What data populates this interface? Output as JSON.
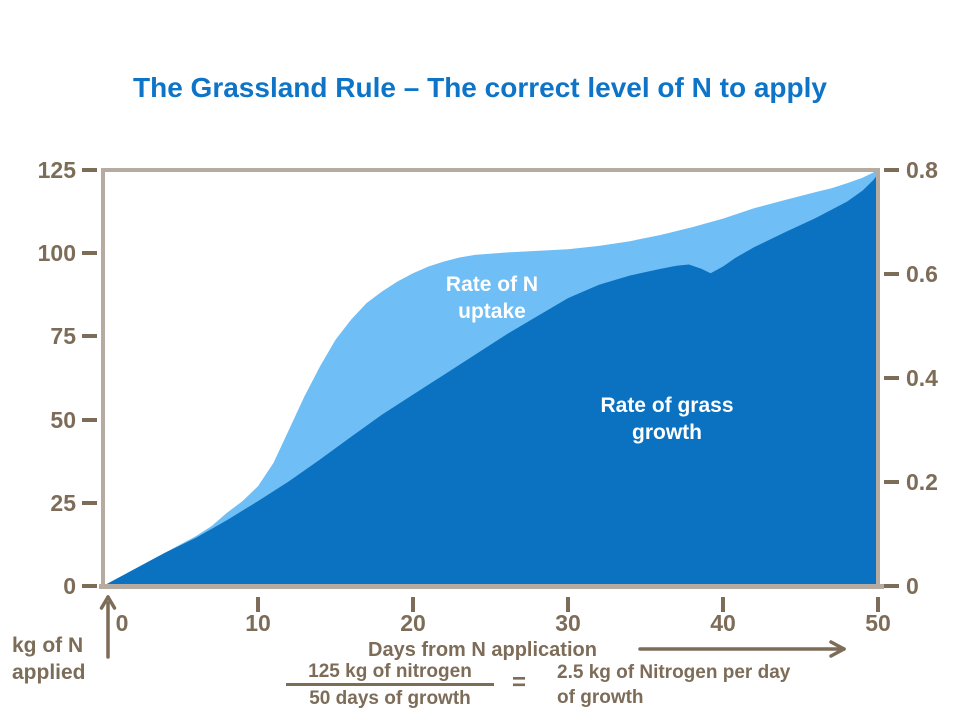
{
  "title": "The Grassland Rule – The correct level of N to apply",
  "colors": {
    "title_blue": "#0d74c8",
    "uptake_area_blue": "#6fbef5",
    "growth_area_blue": "#0b72c2",
    "axis_text_brown": "#7d6c58",
    "frame_gray": "#b5aba1",
    "series_label_white": "#ffffff"
  },
  "left_axis": {
    "title_line1": "kg of N",
    "title_line2": "applied",
    "labels": [
      "125",
      "100",
      "75",
      "50",
      "25",
      "0"
    ],
    "values": [
      125,
      100,
      75,
      50,
      25,
      0
    ]
  },
  "right_axis": {
    "labels": [
      "0.8",
      "0.6",
      "0.4",
      "0.2",
      "0"
    ],
    "values": [
      0.8,
      0.6,
      0.4,
      0.2,
      0
    ]
  },
  "x_axis": {
    "title": "Days from N application",
    "labels": [
      "0",
      "10",
      "20",
      "30",
      "40",
      "50"
    ],
    "values": [
      0,
      10,
      20,
      30,
      40,
      50
    ]
  },
  "series_labels": {
    "uptake_line1": "Rate of N",
    "uptake_line2": "uptake",
    "growth_line1": "Rate of grass",
    "growth_line2": "growth"
  },
  "formula": {
    "numerator": "125 kg of nitrogen",
    "denominator": "50 days of growth",
    "equals": "=",
    "result_line1": "2.5 kg of Nitrogen per day",
    "result_line2": "of growth"
  },
  "chart_data": {
    "type": "area",
    "title": "The Grassland Rule – The correct level of N to apply",
    "xlabel": "Days from N application",
    "ylabel_left": "kg of N applied",
    "xlim": [
      0,
      50
    ],
    "ylim_left": [
      0,
      125
    ],
    "ylim_right": [
      0,
      0.8
    ],
    "x_ticks": [
      0,
      10,
      20,
      30,
      40,
      50
    ],
    "y_ticks_left": [
      0,
      25,
      50,
      75,
      100,
      125
    ],
    "y_ticks_right": [
      0,
      0.2,
      0.4,
      0.6,
      0.8
    ],
    "grid": false,
    "legend": "in-plot text labels",
    "series": [
      {
        "name": "Rate of N uptake",
        "color": "#6fbef5",
        "points": [
          [
            0,
            0
          ],
          [
            1,
            2.5
          ],
          [
            2,
            5
          ],
          [
            3,
            7.5
          ],
          [
            4,
            10
          ],
          [
            5,
            12.5
          ],
          [
            6,
            15
          ],
          [
            7,
            18
          ],
          [
            8,
            22
          ],
          [
            9,
            25.5
          ],
          [
            10,
            30
          ],
          [
            11,
            37
          ],
          [
            12,
            47
          ],
          [
            13,
            57
          ],
          [
            14,
            66
          ],
          [
            15,
            74
          ],
          [
            16,
            80
          ],
          [
            17,
            85
          ],
          [
            18,
            88.5
          ],
          [
            19,
            91.5
          ],
          [
            20,
            94
          ],
          [
            21,
            96
          ],
          [
            22,
            97.5
          ],
          [
            23,
            98.7
          ],
          [
            24,
            99.5
          ],
          [
            26,
            100.2
          ],
          [
            28,
            100.7
          ],
          [
            30,
            101.2
          ],
          [
            32,
            102.2
          ],
          [
            34,
            103.6
          ],
          [
            36,
            105.5
          ],
          [
            38,
            107.8
          ],
          [
            40,
            110.4
          ],
          [
            42,
            113.5
          ],
          [
            44,
            116
          ],
          [
            46,
            118.4
          ],
          [
            47,
            119.5
          ],
          [
            48,
            121
          ],
          [
            49,
            122.7
          ],
          [
            49.6,
            124
          ],
          [
            50,
            125
          ]
        ]
      },
      {
        "name": "Rate of grass growth",
        "color": "#0b72c2",
        "points": [
          [
            0,
            0
          ],
          [
            2,
            5
          ],
          [
            4,
            10
          ],
          [
            6,
            14.5
          ],
          [
            8,
            19.8
          ],
          [
            10,
            25.5
          ],
          [
            12,
            31.5
          ],
          [
            14,
            38
          ],
          [
            16,
            44.8
          ],
          [
            18,
            51.5
          ],
          [
            20,
            57.5
          ],
          [
            22,
            63.5
          ],
          [
            24,
            69.5
          ],
          [
            26,
            75.5
          ],
          [
            28,
            81
          ],
          [
            30,
            86.5
          ],
          [
            32,
            90.5
          ],
          [
            34,
            93.3
          ],
          [
            36,
            95.3
          ],
          [
            37,
            96.2
          ],
          [
            37.8,
            96.6
          ],
          [
            38.6,
            95.3
          ],
          [
            39.2,
            94
          ],
          [
            40,
            96
          ],
          [
            40.8,
            98.6
          ],
          [
            42,
            101.8
          ],
          [
            44,
            106.3
          ],
          [
            46,
            110.6
          ],
          [
            48,
            115.5
          ],
          [
            49,
            118.8
          ],
          [
            49.7,
            122
          ],
          [
            50,
            123.8
          ]
        ]
      }
    ]
  }
}
